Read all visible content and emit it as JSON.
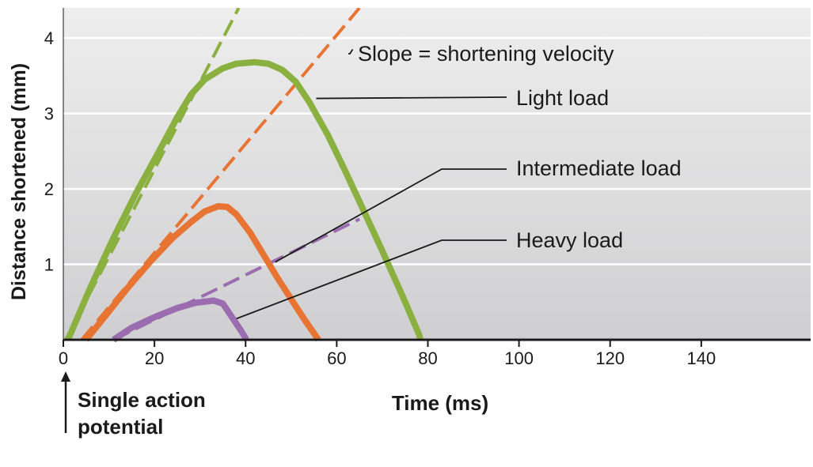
{
  "chart_data": {
    "type": "line",
    "title": "",
    "xlabel": "Time (ms)",
    "ylabel": "Distance shortened (mm)",
    "xlim": [
      0,
      164
    ],
    "ylim": [
      0,
      4.4
    ],
    "xticks": [
      0,
      20,
      40,
      60,
      80,
      100,
      120,
      140
    ],
    "xtick_labels": [
      "0",
      "20",
      "40",
      "60",
      "80",
      "100",
      "120",
      "140"
    ],
    "yticks": [
      1,
      2,
      3,
      4
    ],
    "ytick_labels": [
      "1",
      "2",
      "3",
      "4"
    ],
    "grid": true,
    "series": [
      {
        "name": "Light load",
        "color": "#8ab040",
        "points": [
          [
            1,
            0
          ],
          [
            6,
            0.7
          ],
          [
            11,
            1.35
          ],
          [
            16,
            1.95
          ],
          [
            21,
            2.5
          ],
          [
            25,
            2.95
          ],
          [
            28,
            3.25
          ],
          [
            31,
            3.45
          ],
          [
            35,
            3.6
          ],
          [
            38,
            3.66
          ],
          [
            42,
            3.68
          ],
          [
            45,
            3.66
          ],
          [
            48,
            3.58
          ],
          [
            51,
            3.42
          ],
          [
            54,
            3.15
          ],
          [
            58,
            2.72
          ],
          [
            62,
            2.22
          ],
          [
            66,
            1.7
          ],
          [
            70,
            1.18
          ],
          [
            74,
            0.64
          ],
          [
            78,
            0.08
          ],
          [
            78.4,
            0
          ]
        ]
      },
      {
        "name": "Intermediate load",
        "color": "#e87434",
        "points": [
          [
            5,
            0
          ],
          [
            9,
            0.3
          ],
          [
            14,
            0.68
          ],
          [
            19,
            1.03
          ],
          [
            24,
            1.35
          ],
          [
            28,
            1.56
          ],
          [
            31,
            1.7
          ],
          [
            34,
            1.77
          ],
          [
            36,
            1.76
          ],
          [
            38,
            1.66
          ],
          [
            41,
            1.42
          ],
          [
            44,
            1.12
          ],
          [
            47,
            0.82
          ],
          [
            50,
            0.54
          ],
          [
            53,
            0.26
          ],
          [
            56,
            0
          ]
        ]
      },
      {
        "name": "Heavy load",
        "color": "#9b6db0",
        "points": [
          [
            11,
            0
          ],
          [
            15,
            0.16
          ],
          [
            20,
            0.3
          ],
          [
            25,
            0.42
          ],
          [
            29,
            0.49
          ],
          [
            33,
            0.52
          ],
          [
            35,
            0.48
          ],
          [
            37,
            0.3
          ],
          [
            39,
            0.12
          ],
          [
            40.2,
            0
          ]
        ]
      }
    ],
    "slope_lines": [
      {
        "series": "Light load",
        "color": "#8ab040",
        "points": [
          [
            0.5,
            0
          ],
          [
            38.5,
            4.4
          ]
        ]
      },
      {
        "series": "Intermediate load",
        "color": "#e87434",
        "points": [
          [
            4,
            0
          ],
          [
            65,
            4.4
          ]
        ]
      },
      {
        "series": "Heavy load",
        "color": "#9b6db0",
        "points": [
          [
            11,
            0
          ],
          [
            65,
            1.6
          ]
        ]
      }
    ],
    "annotations": [
      {
        "key": "slope",
        "text": "Slope = shortening velocity",
        "target": [
          63.5,
          3.85
        ]
      },
      {
        "key": "light",
        "text": "Light load",
        "target": [
          55.5,
          3.2
        ]
      },
      {
        "key": "intermediate",
        "text": "Intermediate load",
        "target": [
          46.5,
          1.03
        ]
      },
      {
        "key": "heavy",
        "text": "Heavy load",
        "target": [
          38,
          0.28
        ]
      }
    ],
    "note": [
      "Single action",
      "potential"
    ]
  }
}
